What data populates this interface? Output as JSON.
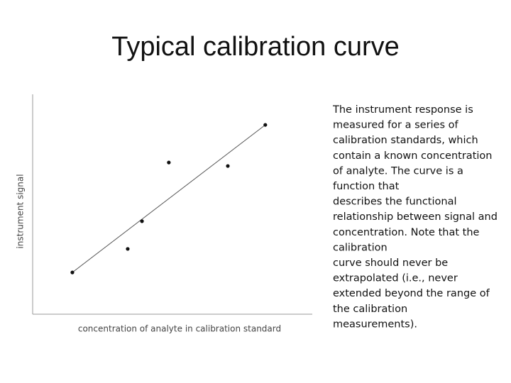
{
  "chart_data": {
    "type": "scatter",
    "title": "Typical calibration curve",
    "x_label": "concentration of analyte in calibration standard",
    "y_label": "instrument signal",
    "x": [
      1.42,
      3.4,
      3.91,
      4.87,
      6.98,
      8.32
    ],
    "values": [
      1.9,
      2.97,
      4.23,
      6.9,
      6.74,
      8.61
    ],
    "color": "#111111",
    "fit_line": {
      "x": [
        1.42,
        8.32
      ],
      "values": [
        1.9,
        8.61
      ],
      "color": "#555555"
    },
    "xlim": [
      0,
      10
    ],
    "ylim": [
      0,
      10
    ],
    "description_lines": [
      "The instrument response is",
      "measured for a series of",
      "calibration standards, which",
      "contain a known concentration",
      "of analyte. The curve is a",
      "function that",
      "describes the functional",
      "relationship between signal and",
      "concentration. Note that the",
      "calibration",
      "curve should never be",
      "extrapolated (i.e., never",
      "extended beyond the range of",
      "the calibration",
      "measurements)."
    ]
  }
}
